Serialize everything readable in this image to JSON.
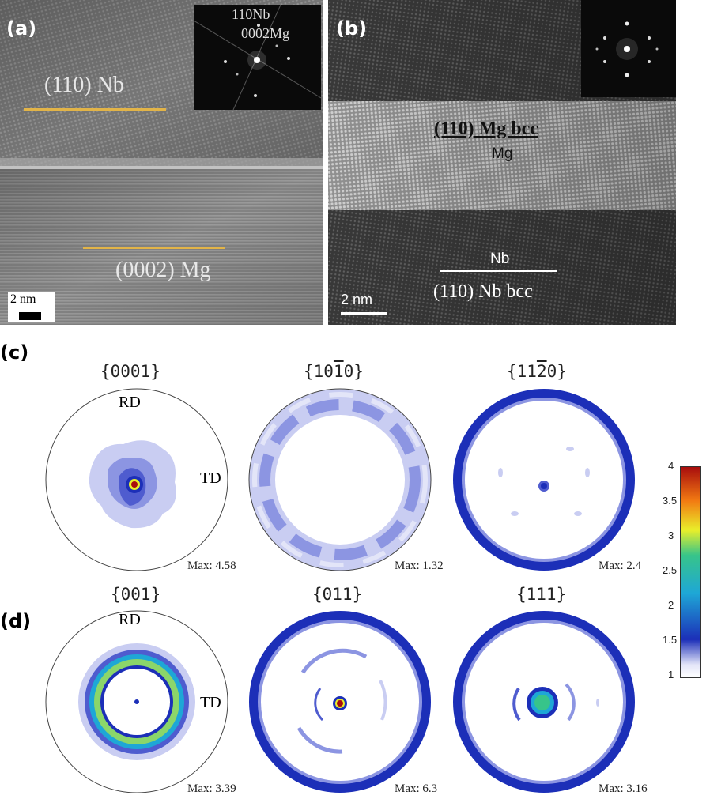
{
  "panels": {
    "a": {
      "letter": "(a)",
      "label_top": "(110) Nb",
      "label_bottom": "(0002) Mg",
      "inset_line1": "110Nb",
      "inset_line2": "0002Mg",
      "scale_bar": "2 nm"
    },
    "b": {
      "letter": "(b)",
      "label_mgbcc": "(110) Mg bcc",
      "label_mg": "Mg",
      "label_nb": "Nb",
      "label_nbbcc": "(110) Nb bcc",
      "scale_bar": "2 nm"
    },
    "c": {
      "letter": "(c)",
      "figures": [
        {
          "title": "{0001}",
          "max": "Max: 4.58",
          "rd": "RD",
          "td": "TD"
        },
        {
          "title": "{1010}",
          "title_base": "{1010}",
          "max": "Max: 1.32"
        },
        {
          "title": "{1120}",
          "max": "Max: 2.4"
        }
      ]
    },
    "d": {
      "letter": "(d)",
      "figures": [
        {
          "title": "{001}",
          "max": "Max: 3.39",
          "rd": "RD",
          "td": "TD"
        },
        {
          "title": "{011}",
          "max": "Max: 6.3"
        },
        {
          "title": "{111}",
          "max": "Max: 3.16"
        }
      ]
    }
  },
  "colorbar": {
    "ticks": [
      "4",
      "3.5",
      "3",
      "2.5",
      "2",
      "1.5",
      "1"
    ],
    "min": 1,
    "max": 4,
    "colors": [
      "#ffffff",
      "#1c2fb8",
      "#1ea7d6",
      "#37c48a",
      "#e9ef2a",
      "#f27a12",
      "#a80d0d"
    ]
  }
}
